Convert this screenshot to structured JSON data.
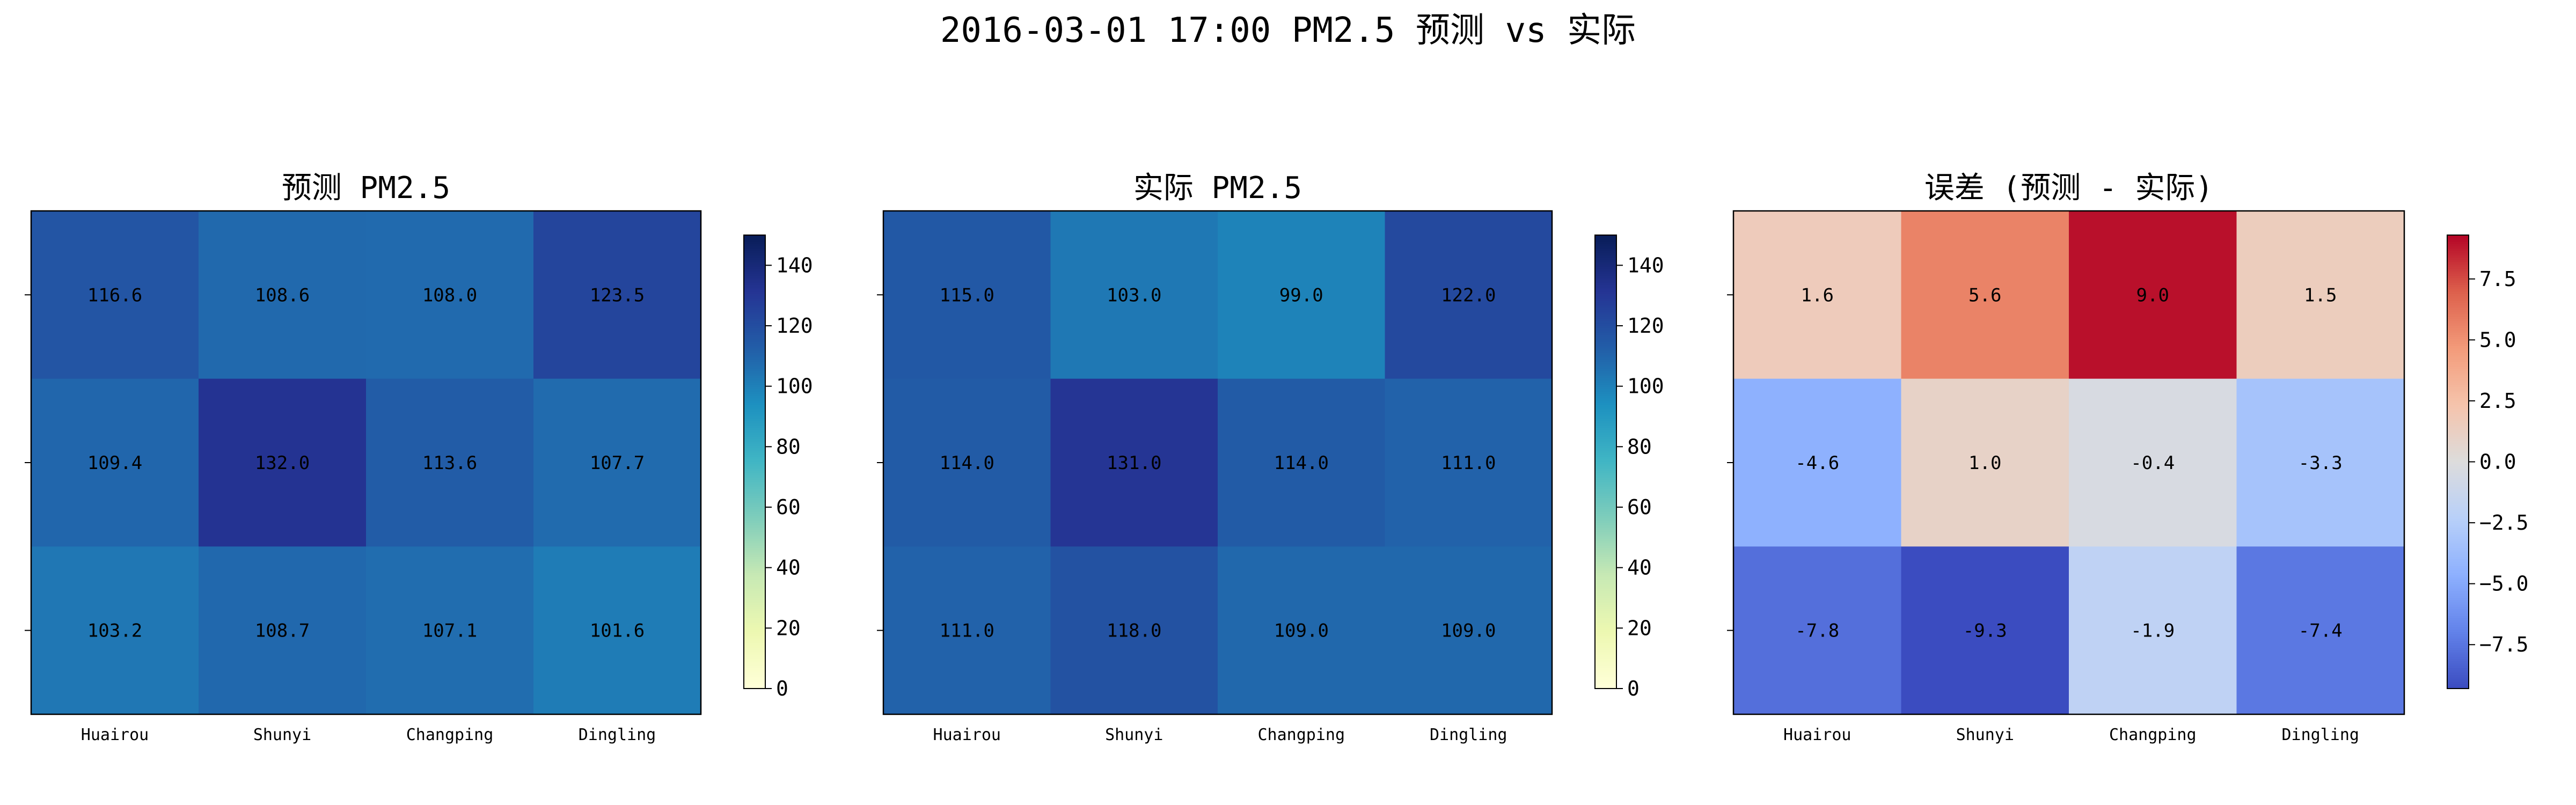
{
  "suptitle": "2016-03-01 17:00 PM2.5 预测 vs 实际",
  "chart_data": [
    {
      "type": "heatmap",
      "title": "预测 PM2.5",
      "colormap": "YlGnBu",
      "x_categories": [
        "Huairou",
        "Shunyi",
        "Changping",
        "Dingling"
      ],
      "values": [
        [
          116.6,
          108.6,
          108.0,
          123.5
        ],
        [
          109.4,
          132.0,
          113.6,
          107.7
        ],
        [
          103.2,
          108.7,
          107.1,
          101.6
        ]
      ],
      "labels": [
        [
          "116.6",
          "108.6",
          "108.0",
          "123.5"
        ],
        [
          "109.4",
          "132.0",
          "113.6",
          "107.7"
        ],
        [
          "103.2",
          "108.7",
          "107.1",
          "101.6"
        ]
      ],
      "vmin": 0,
      "vmax": 150,
      "colorbar_ticks": [
        0,
        20,
        40,
        60,
        80,
        100,
        120,
        140
      ],
      "colorbar_tick_labels": [
        "0",
        "20",
        "40",
        "60",
        "80",
        "100",
        "120",
        "140"
      ]
    },
    {
      "type": "heatmap",
      "title": "实际 PM2.5",
      "colormap": "YlGnBu",
      "x_categories": [
        "Huairou",
        "Shunyi",
        "Changping",
        "Dingling"
      ],
      "values": [
        [
          115.0,
          103.0,
          99.0,
          122.0
        ],
        [
          114.0,
          131.0,
          114.0,
          111.0
        ],
        [
          111.0,
          118.0,
          109.0,
          109.0
        ]
      ],
      "labels": [
        [
          "115.0",
          "103.0",
          "99.0",
          "122.0"
        ],
        [
          "114.0",
          "131.0",
          "114.0",
          "111.0"
        ],
        [
          "111.0",
          "118.0",
          "109.0",
          "109.0"
        ]
      ],
      "vmin": 0,
      "vmax": 150,
      "colorbar_ticks": [
        0,
        20,
        40,
        60,
        80,
        100,
        120,
        140
      ],
      "colorbar_tick_labels": [
        "0",
        "20",
        "40",
        "60",
        "80",
        "100",
        "120",
        "140"
      ]
    },
    {
      "type": "heatmap",
      "title": "误差 (预测 - 实际)",
      "colormap": "coolwarm",
      "x_categories": [
        "Huairou",
        "Shunyi",
        "Changping",
        "Dingling"
      ],
      "values": [
        [
          1.6,
          5.6,
          9.0,
          1.5
        ],
        [
          -4.6,
          1.0,
          -0.4,
          -3.3
        ],
        [
          -7.8,
          -9.3,
          -1.9,
          -7.4
        ]
      ],
      "labels": [
        [
          "1.6",
          "5.6",
          "9.0",
          "1.5"
        ],
        [
          "-4.6",
          "1.0",
          "-0.4",
          "-3.3"
        ],
        [
          "-7.8",
          "-9.3",
          "-1.9",
          "-7.4"
        ]
      ],
      "vmin": -9.3,
      "vmax": 9.3,
      "colorbar_ticks": [
        -7.5,
        -5.0,
        -2.5,
        0.0,
        2.5,
        5.0,
        7.5
      ],
      "colorbar_tick_labels": [
        "−7.5",
        "−5.0",
        "−2.5",
        "0.0",
        "2.5",
        "5.0",
        "7.5"
      ]
    }
  ]
}
